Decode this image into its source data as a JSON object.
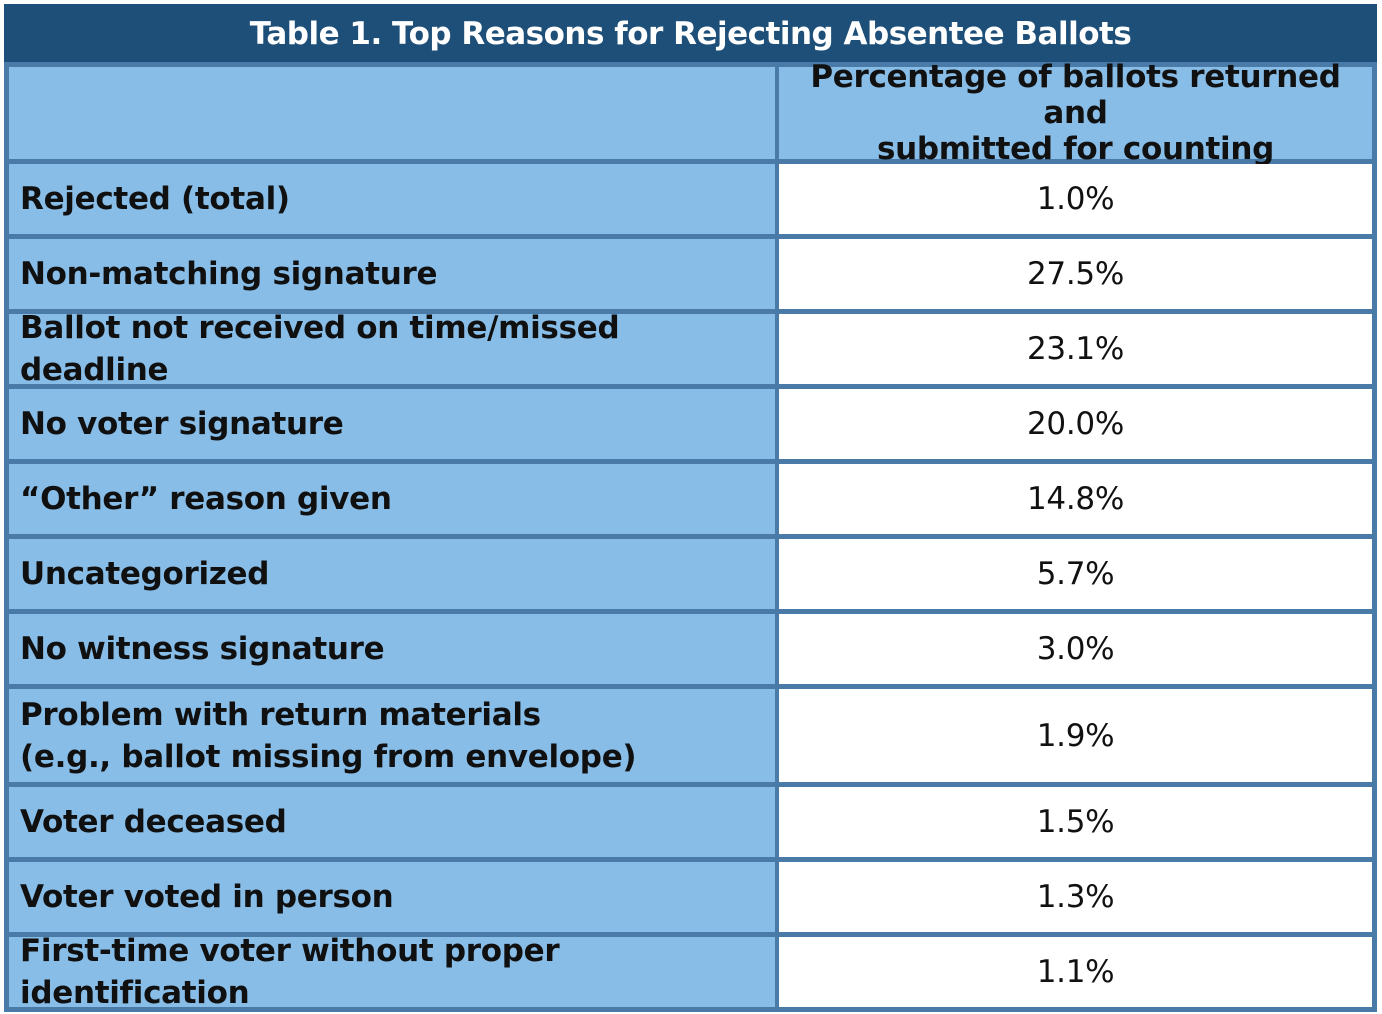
{
  "title": "Table 1. Top Reasons for Rejecting Absentee Ballots",
  "header": {
    "label_column": "",
    "value_column_line1": "Percentage of ballots returned and",
    "value_column_line2": "submitted for counting"
  },
  "rows": [
    {
      "label": "Rejected (total)",
      "label2": "",
      "value": "1.0%"
    },
    {
      "label": "Non-matching signature",
      "label2": "",
      "value": "27.5%"
    },
    {
      "label": "Ballot not received on time/missed deadline",
      "label2": "",
      "value": "23.1%"
    },
    {
      "label": "No voter signature",
      "label2": "",
      "value": "20.0%"
    },
    {
      "label": "“Other” reason given",
      "label2": "",
      "value": "14.8%"
    },
    {
      "label": "Uncategorized",
      "label2": "",
      "value": "5.7%"
    },
    {
      "label": "No witness signature",
      "label2": "",
      "value": "3.0%"
    },
    {
      "label": "Problem with return materials",
      "label2": "(e.g., ballot missing from envelope)",
      "value": "1.9%"
    },
    {
      "label": "Voter deceased",
      "label2": "",
      "value": "1.5%"
    },
    {
      "label": "Voter voted in person",
      "label2": "",
      "value": "1.3%"
    },
    {
      "label": "First-time voter without proper identification",
      "label2": "",
      "value": "1.1%"
    }
  ],
  "colors": {
    "title_bar": "#1e4f78",
    "label_cell": "#88bde8",
    "border": "#4a7aa8",
    "value_cell": "#ffffff"
  },
  "chart_data": {
    "type": "table",
    "title": "Table 1. Top Reasons for Rejecting Absentee Ballots",
    "columns": [
      "",
      "Percentage of ballots returned and submitted for counting"
    ],
    "categories": [
      "Rejected (total)",
      "Non-matching signature",
      "Ballot not received on time/missed deadline",
      "No voter signature",
      "“Other” reason given",
      "Uncategorized",
      "No witness signature",
      "Problem with return materials (e.g., ballot missing from envelope)",
      "Voter deceased",
      "Voter voted in person",
      "First-time voter without proper identification"
    ],
    "values": [
      1.0,
      27.5,
      23.1,
      20.0,
      14.8,
      5.7,
      3.0,
      1.9,
      1.5,
      1.3,
      1.1
    ]
  }
}
